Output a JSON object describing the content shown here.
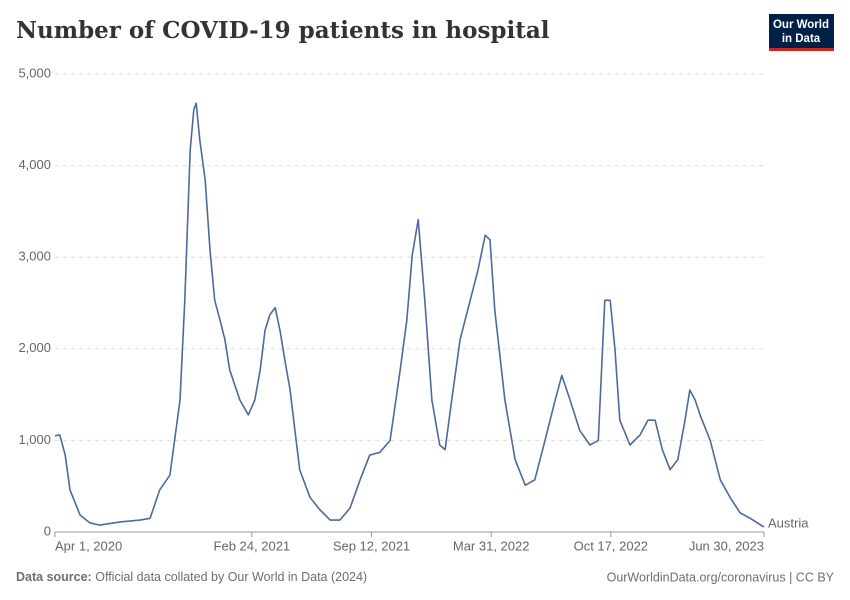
{
  "chart_data": {
    "type": "line",
    "title": "Number of COVID-19 patients in hospital",
    "logo": [
      "Our World",
      "in Data"
    ],
    "source_label": "Data source:",
    "source": "Official data collated by Our World in Data (2024)",
    "footer_right": "OurWorldinData.org/coronavirus | CC BY",
    "x": [
      "2020-04-01",
      "2020-04-09",
      "2020-04-18",
      "2020-04-26",
      "2020-05-13",
      "2020-05-29",
      "2020-06-15",
      "2020-07-19",
      "2020-08-21",
      "2020-09-07",
      "2020-09-23",
      "2020-10-10",
      "2020-10-27",
      "2020-11-04",
      "2020-11-13",
      "2020-11-19",
      "2020-11-23",
      "2020-11-29",
      "2020-12-08",
      "2020-12-16",
      "2020-12-24",
      "2021-01-02",
      "2021-01-10",
      "2021-01-18",
      "2021-02-04",
      "2021-02-18",
      "2021-03-01",
      "2021-03-10",
      "2021-03-18",
      "2021-03-26",
      "2021-04-04",
      "2021-04-12",
      "2021-04-20",
      "2021-04-29",
      "2021-05-07",
      "2021-05-15",
      "2021-06-01",
      "2021-06-18",
      "2021-07-05",
      "2021-07-21",
      "2021-08-07",
      "2021-08-24",
      "2021-09-09",
      "2021-09-26",
      "2021-10-13",
      "2021-10-30",
      "2021-11-10",
      "2021-11-19",
      "2021-11-29",
      "2021-12-10",
      "2021-12-22",
      "2022-01-04",
      "2022-01-13",
      "2022-01-24",
      "2022-02-07",
      "2022-02-24",
      "2022-03-09",
      "2022-03-21",
      "2022-03-29",
      "2022-04-06",
      "2022-04-23",
      "2022-05-10",
      "2022-05-27",
      "2022-06-12",
      "2022-06-29",
      "2022-07-16",
      "2022-07-27",
      "2022-08-10",
      "2022-08-26",
      "2022-09-12",
      "2022-09-26",
      "2022-10-07",
      "2022-10-16",
      "2022-10-24",
      "2022-11-01",
      "2022-11-18",
      "2022-12-05",
      "2022-12-18",
      "2022-12-30",
      "2023-01-11",
      "2023-01-24",
      "2023-02-06",
      "2023-02-18",
      "2023-02-26",
      "2023-03-07",
      "2023-03-15",
      "2023-04-01",
      "2023-04-18",
      "2023-05-05",
      "2023-05-21",
      "2023-06-07",
      "2023-06-30"
    ],
    "series": [
      {
        "name": "Austria",
        "color": "#4c6a9c",
        "values": [
          1050,
          1060,
          840,
          460,
          185,
          100,
          75,
          110,
          130,
          150,
          460,
          620,
          1440,
          2530,
          4170,
          4610,
          4680,
          4280,
          3840,
          3080,
          2530,
          2310,
          2100,
          1770,
          1440,
          1280,
          1440,
          1770,
          2200,
          2370,
          2450,
          2200,
          1880,
          1550,
          1110,
          680,
          380,
          240,
          130,
          130,
          260,
          570,
          840,
          870,
          1000,
          1770,
          2310,
          3020,
          3410,
          2530,
          1440,
          950,
          900,
          1440,
          2100,
          2530,
          2860,
          3240,
          3190,
          2420,
          1440,
          790,
          510,
          570,
          1000,
          1440,
          1710,
          1440,
          1110,
          950,
          1000,
          2530,
          2530,
          1990,
          1220,
          950,
          1060,
          1220,
          1220,
          900,
          680,
          790,
          1220,
          1550,
          1440,
          1280,
          1000,
          570,
          370,
          210,
          150,
          55
        ]
      }
    ],
    "xlim": [
      "2020-04-01",
      "2023-06-30"
    ],
    "xticks": [
      {
        "value": "2020-04-01",
        "label": "Apr 1, 2020"
      },
      {
        "value": "2021-02-24",
        "label": "Feb 24, 2021"
      },
      {
        "value": "2021-09-12",
        "label": "Sep 12, 2021"
      },
      {
        "value": "2022-03-31",
        "label": "Mar 31, 2022"
      },
      {
        "value": "2022-10-17",
        "label": "Oct 17, 2022"
      },
      {
        "value": "2023-06-30",
        "label": "Jun 30, 2023"
      }
    ],
    "ylim": [
      0,
      5000
    ],
    "yticks": [
      0,
      {
        "value": 1000,
        "label": "1,000"
      },
      {
        "value": 2000,
        "label": "2,000"
      },
      {
        "value": 3000,
        "label": "3,000"
      },
      {
        "value": 4000,
        "label": "4,000"
      },
      {
        "value": 5000,
        "label": "5,000"
      }
    ],
    "grid": true
  }
}
